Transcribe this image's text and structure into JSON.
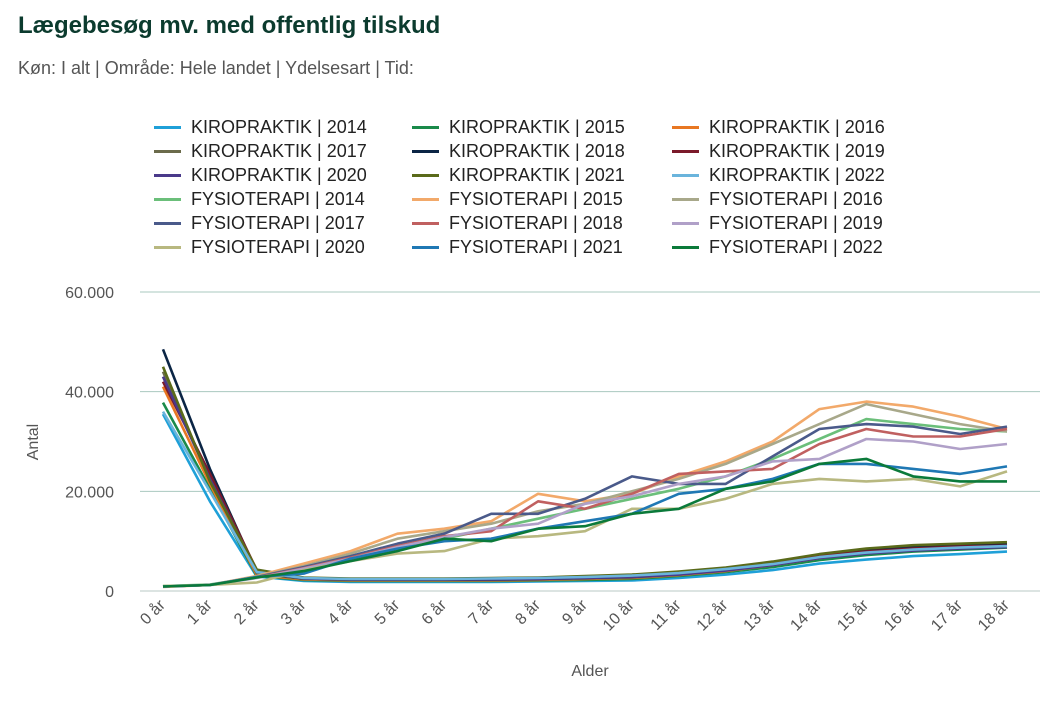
{
  "title": "Lægebesøg mv. med offentlig tilskud",
  "subtitle": "Køn: I alt | Område: Hele landet | Ydelsesart | Tid:",
  "chart_data": {
    "type": "line",
    "xlabel": "Alder",
    "ylabel": "Antal",
    "ylim": [
      0,
      60000
    ],
    "yticks": [
      0,
      20000,
      40000,
      60000
    ],
    "ytick_labels": [
      "0",
      "20.000",
      "40.000",
      "60.000"
    ],
    "grid": true,
    "legend_position": "top",
    "categories": [
      "0 år",
      "1 år",
      "2 år",
      "3 år",
      "4 år",
      "5 år",
      "6 år",
      "7 år",
      "8 år",
      "9 år",
      "10 år",
      "11 år",
      "12 år",
      "13 år",
      "14 år",
      "15 år",
      "16 år",
      "17 år",
      "18 år"
    ],
    "series": [
      {
        "name": "KIROPRAKTIK | 2014",
        "color": "#1fa0d8",
        "values": [
          35500,
          18000,
          2900,
          2000,
          1800,
          1800,
          1800,
          1800,
          1900,
          2000,
          2100,
          2600,
          3300,
          4200,
          5500,
          6300,
          7000,
          7400,
          7900
        ]
      },
      {
        "name": "KIROPRAKTIK | 2015",
        "color": "#1a8a4a",
        "values": [
          37800,
          20500,
          3000,
          2200,
          2000,
          2000,
          2000,
          2000,
          2100,
          2200,
          2400,
          3000,
          3800,
          4800,
          6200,
          7200,
          7900,
          8300,
          8700
        ]
      },
      {
        "name": "KIROPRAKTIK | 2016",
        "color": "#e87722",
        "values": [
          41000,
          21500,
          3200,
          2300,
          2100,
          2100,
          2100,
          2100,
          2200,
          2400,
          2600,
          3200,
          4000,
          5200,
          6600,
          7700,
          8400,
          8900,
          9300
        ]
      },
      {
        "name": "KIROPRAKTIK | 2017",
        "color": "#6b6b4b",
        "values": [
          44000,
          22500,
          3500,
          2400,
          2200,
          2200,
          2200,
          2200,
          2300,
          2500,
          2700,
          3300,
          4200,
          5400,
          6900,
          8000,
          8700,
          9200,
          9500
        ]
      },
      {
        "name": "KIROPRAKTIK | 2018",
        "color": "#0b2545",
        "values": [
          48500,
          24500,
          3800,
          2500,
          2300,
          2300,
          2300,
          2300,
          2400,
          2600,
          2800,
          3400,
          4300,
          5500,
          7000,
          8100,
          8800,
          9200,
          9400
        ]
      },
      {
        "name": "KIROPRAKTIK | 2019",
        "color": "#7b1a2a",
        "values": [
          42000,
          23500,
          4200,
          2600,
          2400,
          2400,
          2400,
          2400,
          2500,
          2700,
          2900,
          3500,
          4300,
          5500,
          7000,
          7900,
          8500,
          8900,
          9100
        ]
      },
      {
        "name": "KIROPRAKTIK | 2020",
        "color": "#4a3a8a",
        "values": [
          43000,
          22500,
          4000,
          2500,
          2300,
          2300,
          2300,
          2300,
          2400,
          2600,
          2800,
          3300,
          4100,
          5200,
          6600,
          7500,
          8100,
          8500,
          8800
        ]
      },
      {
        "name": "KIROPRAKTIK | 2021",
        "color": "#5a6a1a",
        "values": [
          45000,
          22000,
          4300,
          2700,
          2500,
          2500,
          2500,
          2600,
          2700,
          3000,
          3300,
          3900,
          4700,
          5900,
          7400,
          8500,
          9200,
          9500,
          9800
        ]
      },
      {
        "name": "KIROPRAKTIK | 2022",
        "color": "#6ab4dc",
        "values": [
          36000,
          20000,
          3800,
          2600,
          2400,
          2400,
          2400,
          2500,
          2600,
          2800,
          3100,
          3600,
          4400,
          5400,
          6800,
          7700,
          8300,
          8700,
          9000
        ]
      },
      {
        "name": "FYSIOTERAPI | 2014",
        "color": "#6bbf7a",
        "values": [
          1000,
          1300,
          2800,
          4500,
          6500,
          8500,
          10500,
          12500,
          14500,
          16500,
          18500,
          20500,
          23000,
          26500,
          30500,
          34500,
          33500,
          32500,
          32000
        ]
      },
      {
        "name": "FYSIOTERAPI | 2015",
        "color": "#f2a96a",
        "values": [
          800,
          1200,
          3000,
          5500,
          8000,
          11500,
          12500,
          14000,
          19500,
          18000,
          19500,
          23000,
          26000,
          30000,
          36500,
          38000,
          37000,
          35000,
          32500
        ]
      },
      {
        "name": "FYSIOTERAPI | 2016",
        "color": "#a8a88a",
        "values": [
          900,
          1200,
          2900,
          5000,
          7500,
          10500,
          12000,
          13500,
          16000,
          17500,
          20000,
          22500,
          25500,
          29500,
          33500,
          37500,
          35500,
          33500,
          32000
        ]
      },
      {
        "name": "FYSIOTERAPI | 2017",
        "color": "#4a5a8a",
        "values": [
          900,
          1200,
          2800,
          4800,
          7000,
          9500,
          11500,
          15500,
          15500,
          18500,
          23000,
          21500,
          21500,
          27000,
          32500,
          33500,
          33000,
          31500,
          33000
        ]
      },
      {
        "name": "FYSIOTERAPI | 2018",
        "color": "#c06060",
        "values": [
          900,
          1200,
          2700,
          4600,
          6700,
          9000,
          11000,
          12000,
          18000,
          16500,
          19500,
          23500,
          24000,
          24500,
          29500,
          32500,
          31000,
          31000,
          32500
        ]
      },
      {
        "name": "FYSIOTERAPI | 2019",
        "color": "#b0a0c8",
        "values": [
          900,
          1200,
          2600,
          4500,
          6500,
          8800,
          10800,
          12500,
          13500,
          17500,
          19000,
          21500,
          23000,
          26000,
          26500,
          30500,
          30000,
          28500,
          29500
        ]
      },
      {
        "name": "FYSIOTERAPI | 2020",
        "color": "#b8b880",
        "values": [
          1000,
          1200,
          1700,
          4200,
          6000,
          7500,
          8000,
          10500,
          11000,
          12000,
          16500,
          16500,
          18500,
          21500,
          22500,
          22000,
          22500,
          21000,
          24000
        ]
      },
      {
        "name": "FYSIOTERAPI | 2021",
        "color": "#1f78b4",
        "values": [
          900,
          1200,
          2800,
          3500,
          6500,
          8500,
          10000,
          10500,
          12500,
          14000,
          15500,
          19500,
          20500,
          22500,
          25500,
          25500,
          24500,
          23500,
          25000
        ]
      },
      {
        "name": "FYSIOTERAPI | 2022",
        "color": "#0b7a3a",
        "values": [
          900,
          1200,
          2700,
          4000,
          6000,
          8000,
          10500,
          10000,
          12500,
          13000,
          15500,
          16500,
          20500,
          22000,
          25500,
          26500,
          23000,
          22000,
          22000
        ]
      }
    ]
  }
}
